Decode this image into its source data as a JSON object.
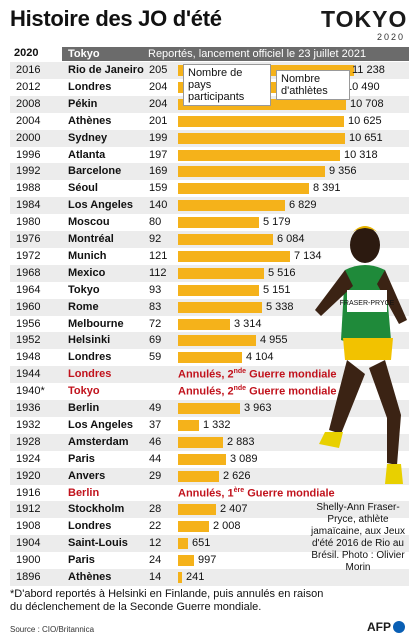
{
  "title": "Histoire des JO d'été",
  "logo": {
    "word": "TOKYO",
    "year": "2020"
  },
  "header": {
    "year": "2020",
    "city": "Tokyo",
    "note": "Reportés, lancement officiel le 23 juillet 2021"
  },
  "legend": {
    "nations": "Nombre de pays participants",
    "athletes": "Nombre d'athlètes"
  },
  "rows": [
    {
      "year": "2016",
      "city": "Rio de Janeiro",
      "nations": "205",
      "athletes": "11 238"
    },
    {
      "year": "2012",
      "city": "Londres",
      "nations": "204",
      "athletes": "10 490"
    },
    {
      "year": "2008",
      "city": "Pékin",
      "nations": "204",
      "athletes": "10 708"
    },
    {
      "year": "2004",
      "city": "Athènes",
      "nations": "201",
      "athletes": "10 625"
    },
    {
      "year": "2000",
      "city": "Sydney",
      "nations": "199",
      "athletes": "10 651"
    },
    {
      "year": "1996",
      "city": "Atlanta",
      "nations": "197",
      "athletes": "10 318"
    },
    {
      "year": "1992",
      "city": "Barcelone",
      "nations": "169",
      "athletes": "9 356"
    },
    {
      "year": "1988",
      "city": "Séoul",
      "nations": "159",
      "athletes": "8 391"
    },
    {
      "year": "1984",
      "city": "Los Angeles",
      "nations": "140",
      "athletes": "6 829"
    },
    {
      "year": "1980",
      "city": "Moscou",
      "nations": "80",
      "athletes": "5 179"
    },
    {
      "year": "1976",
      "city": "Montréal",
      "nations": "92",
      "athletes": "6 084"
    },
    {
      "year": "1972",
      "city": "Munich",
      "nations": "121",
      "athletes": "7 134"
    },
    {
      "year": "1968",
      "city": "Mexico",
      "nations": "112",
      "athletes": "5 516"
    },
    {
      "year": "1964",
      "city": "Tokyo",
      "nations": "93",
      "athletes": "5 151"
    },
    {
      "year": "1960",
      "city": "Rome",
      "nations": "83",
      "athletes": "5 338"
    },
    {
      "year": "1956",
      "city": "Melbourne",
      "nations": "72",
      "athletes": "3 314"
    },
    {
      "year": "1952",
      "city": "Helsinki",
      "nations": "69",
      "athletes": "4 955"
    },
    {
      "year": "1948",
      "city": "Londres",
      "nations": "59",
      "athletes": "4 104"
    },
    {
      "year": "1944",
      "city": "Londres",
      "cancel": "Annulés, 2",
      "cancel_sup": "nde",
      "cancel_rest": " Guerre mondiale"
    },
    {
      "year": "1940*",
      "city": "Tokyo",
      "cancel": "Annulés, 2",
      "cancel_sup": "nde",
      "cancel_rest": " Guerre mondiale"
    },
    {
      "year": "1936",
      "city": "Berlin",
      "nations": "49",
      "athletes": "3 963"
    },
    {
      "year": "1932",
      "city": "Los Angeles",
      "nations": "37",
      "athletes": "1 332"
    },
    {
      "year": "1928",
      "city": "Amsterdam",
      "nations": "46",
      "athletes": "2 883"
    },
    {
      "year": "1924",
      "city": "Paris",
      "nations": "44",
      "athletes": "3 089"
    },
    {
      "year": "1920",
      "city": "Anvers",
      "nations": "29",
      "athletes": "2 626"
    },
    {
      "year": "1916",
      "city": "Berlin",
      "cancel": "Annulés, 1",
      "cancel_sup": "ère",
      "cancel_rest": " Guerre mondiale"
    },
    {
      "year": "1912",
      "city": "Stockholm",
      "nations": "28",
      "athletes": "2 407"
    },
    {
      "year": "1908",
      "city": "Londres",
      "nations": "22",
      "athletes": "2 008"
    },
    {
      "year": "1904",
      "city": "Saint-Louis",
      "nations": "12",
      "athletes": "651"
    },
    {
      "year": "1900",
      "city": "Paris",
      "nations": "24",
      "athletes": "997"
    },
    {
      "year": "1896",
      "city": "Athènes",
      "nations": "14",
      "athletes": "241"
    }
  ],
  "caption": "Shelly-Ann Fraser-Pryce, athlète jamaïcaine, aux Jeux d'été 2016 de Rio au Brésil. Photo : Olivier Morin",
  "bib": "FRASER-PRYCE",
  "footnote": "*D'abord reportés à Helsinki en Finlande, puis annulés en raison du déclenchement de la Seconde Guerre mondiale.",
  "source": "Source : CIO/Britannica",
  "agency": "AFP",
  "colors": {
    "bar": "#f5b21a",
    "cancel": "#c1121c",
    "header": "#6b6b6b"
  },
  "chart_data": {
    "type": "bar",
    "title": "Histoire des JO d'été",
    "categories": [
      "2016",
      "2012",
      "2008",
      "2004",
      "2000",
      "1996",
      "1992",
      "1988",
      "1984",
      "1980",
      "1976",
      "1972",
      "1968",
      "1964",
      "1960",
      "1956",
      "1952",
      "1948",
      "1944",
      "1940*",
      "1936",
      "1932",
      "1928",
      "1924",
      "1920",
      "1916",
      "1912",
      "1908",
      "1904",
      "1900",
      "1896"
    ],
    "series": [
      {
        "name": "Nombre d'athlètes",
        "values": [
          11238,
          10490,
          10708,
          10625,
          10651,
          10318,
          9356,
          8391,
          6829,
          5179,
          6084,
          7134,
          5516,
          5151,
          5338,
          3314,
          4955,
          4104,
          null,
          null,
          3963,
          1332,
          2883,
          3089,
          2626,
          null,
          2407,
          2008,
          651,
          997,
          241
        ]
      },
      {
        "name": "Nombre de pays participants",
        "values": [
          205,
          204,
          204,
          201,
          199,
          197,
          169,
          159,
          140,
          80,
          92,
          121,
          112,
          93,
          83,
          72,
          69,
          59,
          null,
          null,
          49,
          37,
          46,
          44,
          29,
          null,
          28,
          22,
          12,
          24,
          14
        ]
      }
    ],
    "xlim": [
      0,
      11238
    ]
  }
}
